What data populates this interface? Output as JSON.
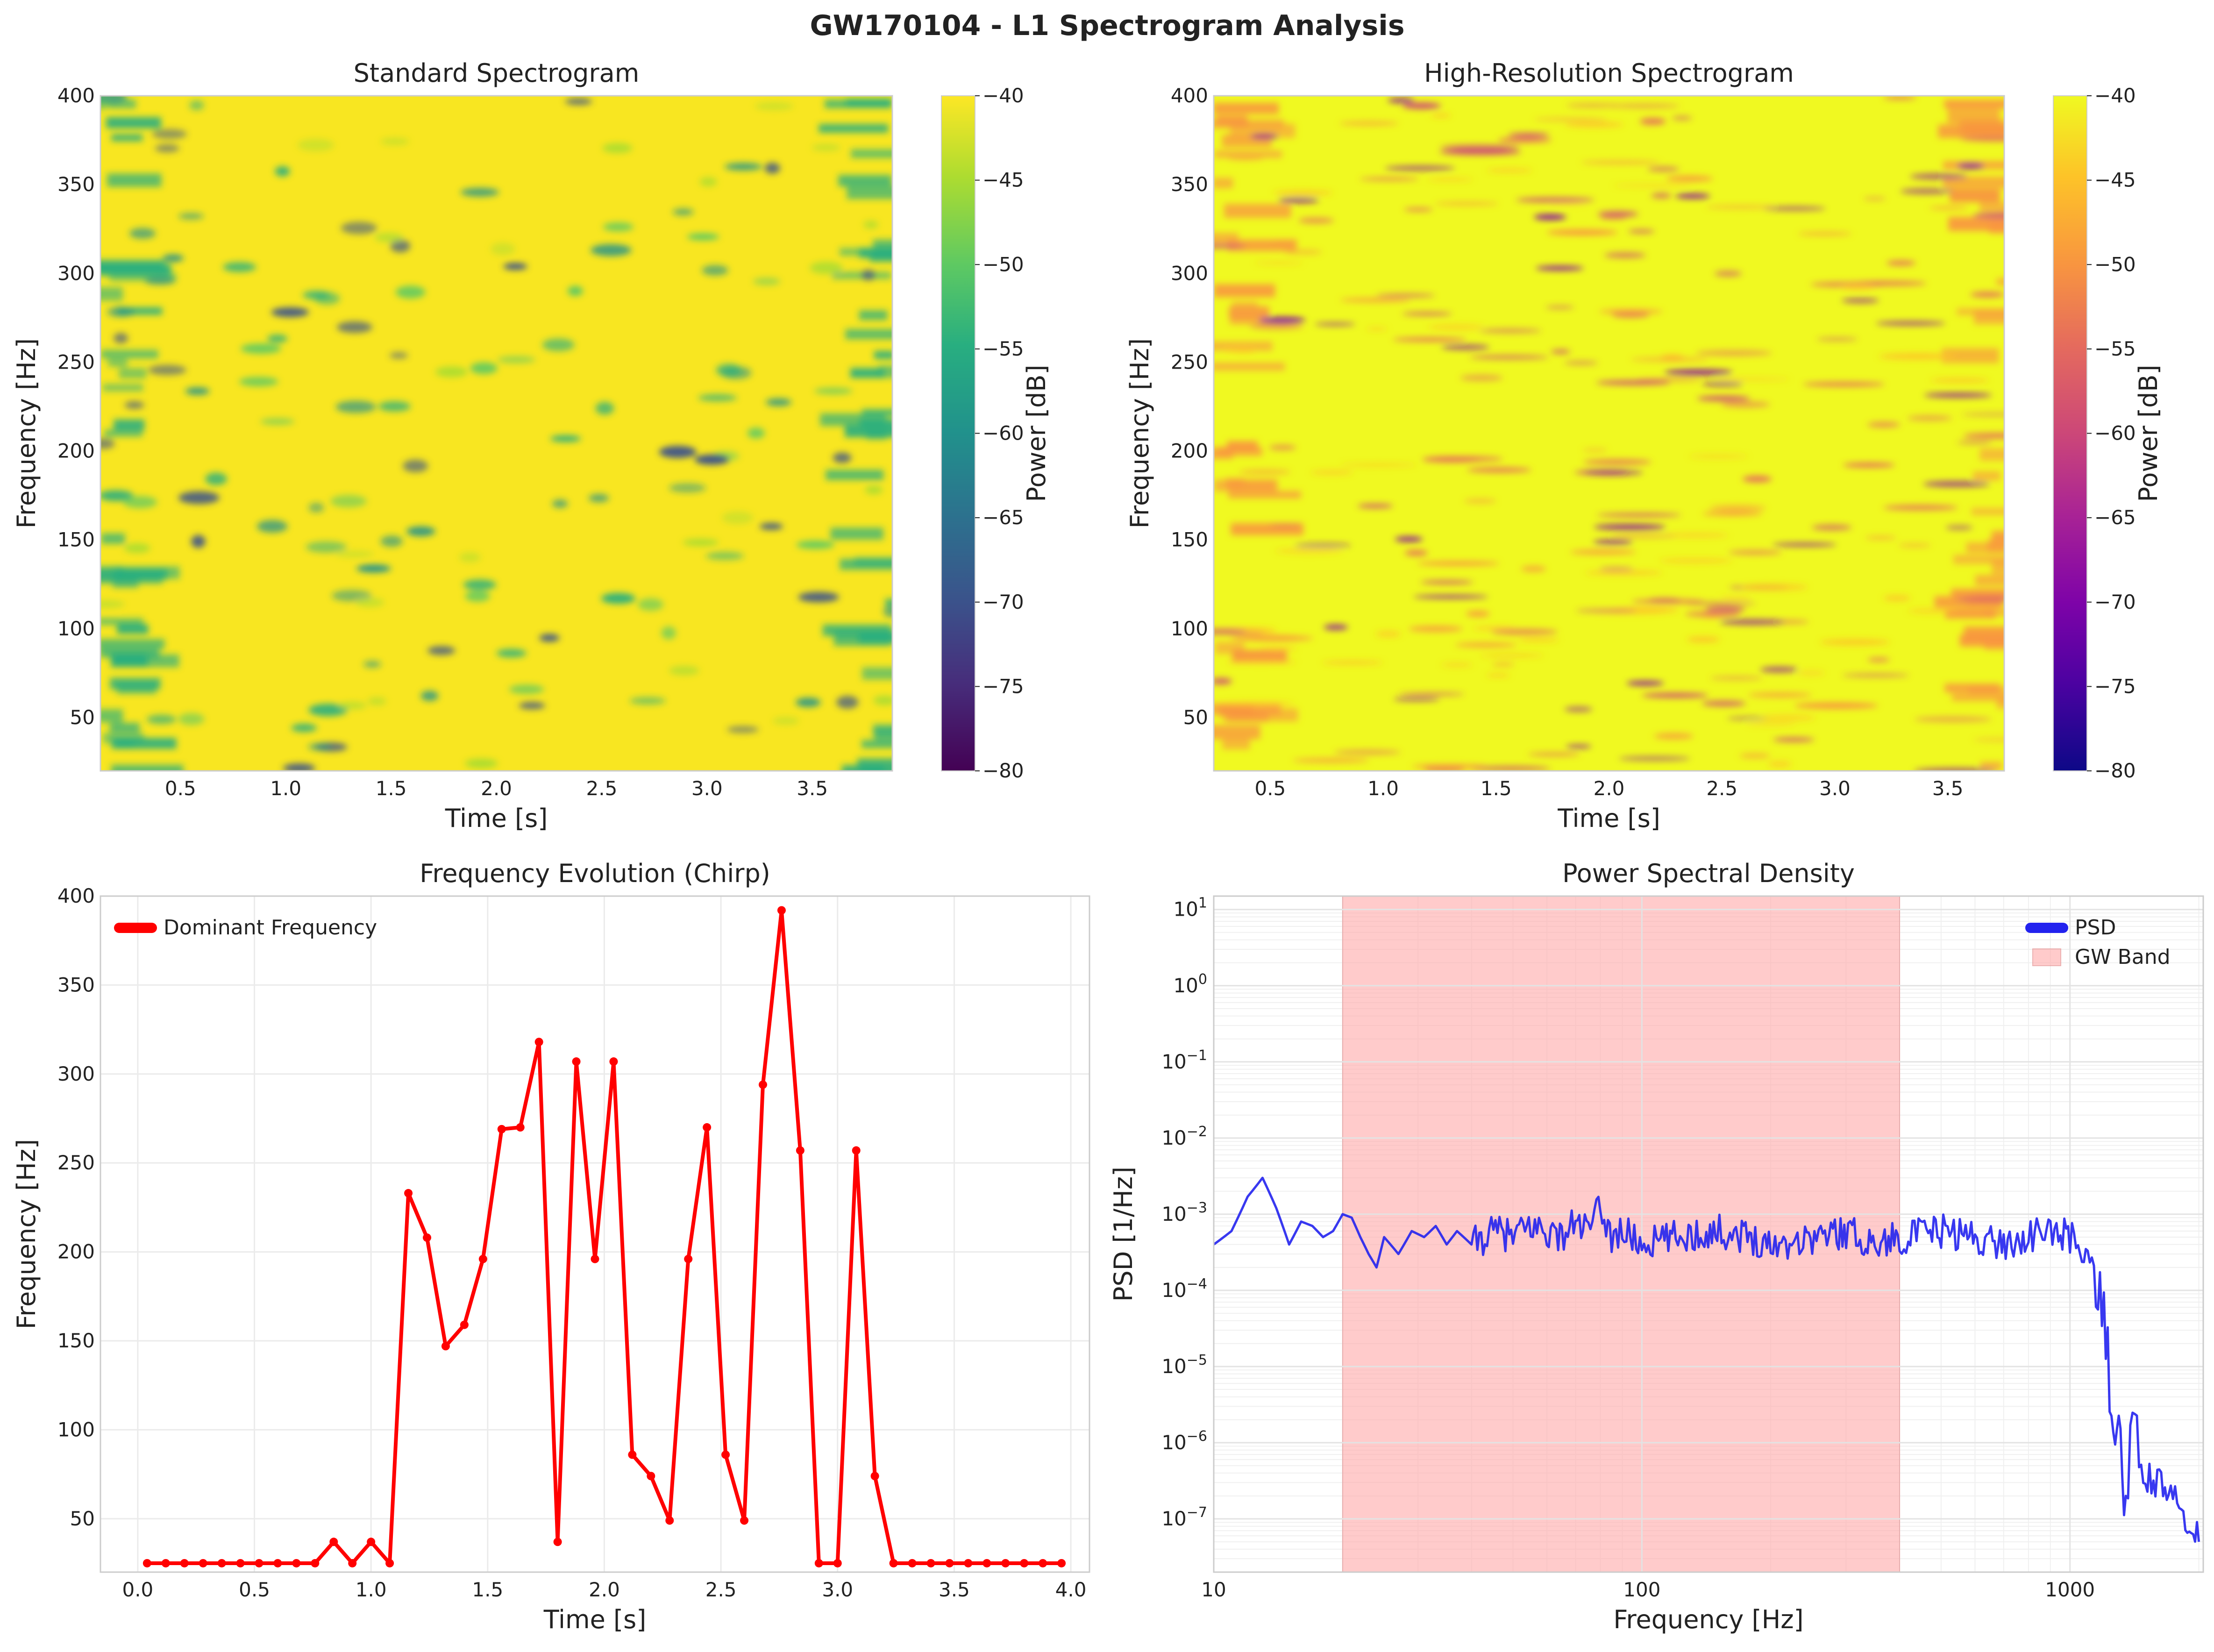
{
  "suptitle": "GW170104 - L1 Spectrogram Analysis",
  "chart_data": [
    {
      "type": "heatmap",
      "title": "Standard Spectrogram",
      "xlabel": "Time [s]",
      "ylabel": "Frequency [Hz]",
      "xlim": [
        0.12,
        3.88
      ],
      "ylim": [
        20,
        400
      ],
      "xticks": [
        "0.5",
        "1.0",
        "1.5",
        "2.0",
        "2.5",
        "3.0",
        "3.5"
      ],
      "yticks": [
        "50",
        "100",
        "150",
        "200",
        "250",
        "300",
        "350",
        "400"
      ],
      "colormap": "viridis",
      "colorbar": {
        "label": "Power [dB]",
        "range": [
          -80,
          -40
        ],
        "ticks": [
          "−80",
          "−75",
          "−70",
          "−65",
          "−60",
          "−55",
          "−50",
          "−45",
          "−40"
        ]
      }
    },
    {
      "type": "heatmap",
      "title": "High-Resolution Spectrogram",
      "xlabel": "Time [s]",
      "ylabel": "Frequency [Hz]",
      "xlim": [
        0.25,
        3.75
      ],
      "ylim": [
        20,
        400
      ],
      "xticks": [
        "0.5",
        "1.0",
        "1.5",
        "2.0",
        "2.5",
        "3.0",
        "3.5"
      ],
      "yticks": [
        "50",
        "100",
        "150",
        "200",
        "250",
        "300",
        "350",
        "400"
      ],
      "colormap": "plasma",
      "colorbar": {
        "label": "Power [dB]",
        "range": [
          -80,
          -40
        ],
        "ticks": [
          "−80",
          "−75",
          "−70",
          "−65",
          "−60",
          "−55",
          "−50",
          "−45",
          "−40"
        ]
      }
    },
    {
      "type": "line",
      "title": "Frequency Evolution (Chirp)",
      "xlabel": "Time [s]",
      "ylabel": "Frequency [Hz]",
      "xlim": [
        -0.16,
        4.08
      ],
      "ylim": [
        20,
        400
      ],
      "xticks": [
        "0.0",
        "0.5",
        "1.0",
        "1.5",
        "2.0",
        "2.5",
        "3.0",
        "3.5",
        "4.0"
      ],
      "yticks": [
        "50",
        "100",
        "150",
        "200",
        "250",
        "300",
        "350",
        "400"
      ],
      "legend": "top-left",
      "grid": true,
      "series": [
        {
          "name": "Dominant Frequency",
          "color": "#ff0000",
          "x": [
            0.04,
            0.12,
            0.2,
            0.28,
            0.36,
            0.44,
            0.52,
            0.6,
            0.68,
            0.76,
            0.84,
            0.92,
            1.0,
            1.08,
            1.16,
            1.24,
            1.32,
            1.4,
            1.48,
            1.56,
            1.64,
            1.72,
            1.8,
            1.88,
            1.96,
            2.04,
            2.12,
            2.2,
            2.28,
            2.36,
            2.44,
            2.52,
            2.6,
            2.68,
            2.76,
            2.84,
            2.92,
            3.0,
            3.08,
            3.16,
            3.24,
            3.32,
            3.4,
            3.48,
            3.56,
            3.64,
            3.72,
            3.8,
            3.88,
            3.96
          ],
          "y": [
            25,
            25,
            25,
            25,
            25,
            25,
            25,
            25,
            25,
            25,
            37,
            25,
            37,
            25,
            233,
            208,
            147,
            159,
            196,
            269,
            270,
            318,
            37,
            307,
            196,
            307,
            86,
            74,
            49,
            196,
            270,
            86,
            49,
            294,
            392,
            257,
            25,
            25,
            257,
            74,
            25,
            25,
            25,
            25,
            25,
            25,
            25,
            25,
            25,
            25
          ]
        }
      ]
    },
    {
      "type": "line",
      "title": "Power Spectral Density",
      "xlabel": "Frequency [Hz]",
      "ylabel": "PSD [1/Hz]",
      "xscale": "log",
      "yscale": "log",
      "xlim": [
        10,
        2048
      ],
      "ylim": [
        2e-08,
        15
      ],
      "xticks": [
        "10",
        "100",
        "1000"
      ],
      "yticks": [
        "10^-7",
        "10^-6",
        "10^-5",
        "10^-4",
        "10^-3",
        "10^-2",
        "10^-1",
        "10^0",
        "10^1"
      ],
      "legend": "top-right",
      "grid": true,
      "band": {
        "name": "GW Band",
        "range": [
          20,
          400
        ],
        "color": "#ffaaaa"
      },
      "series": [
        {
          "name": "PSD",
          "color": "#2222ee",
          "x": [
            10,
            11,
            12,
            13,
            14,
            15,
            16,
            17,
            18,
            19,
            20,
            21,
            22,
            23,
            24,
            25,
            27,
            29,
            31,
            33,
            35,
            37,
            40,
            43,
            46,
            50,
            55,
            60,
            65,
            70,
            75,
            80,
            85,
            90,
            100,
            120,
            150,
            180,
            200,
            250,
            300,
            350,
            400,
            500,
            600,
            700,
            800,
            900,
            1000,
            1100,
            1150,
            1200,
            1250,
            1300,
            1350,
            1400,
            1450,
            1500,
            1550,
            1600,
            1700,
            1800,
            1900,
            2000
          ],
          "y": [
            0.0004,
            0.0006,
            0.0017,
            0.003,
            0.0012,
            0.0004,
            0.0008,
            0.0007,
            0.0005,
            0.0006,
            0.001,
            0.0009,
            0.0005,
            0.0003,
            0.0002,
            0.0005,
            0.0003,
            0.0006,
            0.0005,
            0.0007,
            0.0004,
            0.0006,
            0.0004,
            0.0005,
            0.0006,
            0.0005,
            0.0007,
            0.0006,
            0.0005,
            0.0008,
            0.0006,
            0.0012,
            0.0005,
            0.0006,
            0.0004,
            0.0005,
            0.0006,
            0.0005,
            0.0004,
            0.0005,
            0.0006,
            0.0004,
            0.0005,
            0.0006,
            0.0005,
            0.0004,
            0.0005,
            0.0006,
            0.0005,
            0.0003,
            0.0001,
            3e-05,
            5e-06,
            9e-07,
            1.5e-07,
            2.5e-06,
            4e-07,
            3.5e-07,
            3.2e-07,
            3e-07,
            2e-07,
            1.5e-07,
            1e-07,
            5e-08
          ]
        }
      ]
    }
  ]
}
